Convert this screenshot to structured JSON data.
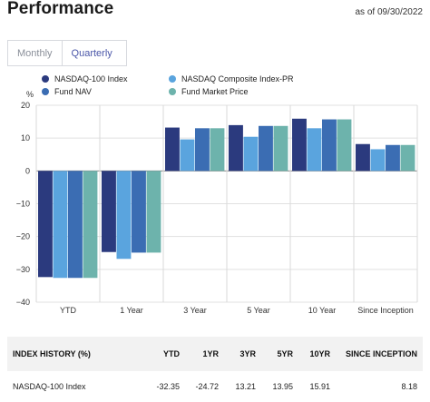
{
  "header": {
    "title": "Performance",
    "as_of": "as of 09/30/2022"
  },
  "tabs": [
    {
      "label": "Monthly",
      "active": false
    },
    {
      "label": "Quarterly",
      "active": true
    }
  ],
  "colors": {
    "nasdaq100": "#2b3a7e",
    "composite": "#5aa4de",
    "nav": "#3b6db3",
    "market": "#6db3ac",
    "accent": "#4a56a8"
  },
  "chart_data": {
    "type": "bar",
    "ylabel": "%",
    "ylim": [
      -40,
      20
    ],
    "yticks": [
      "20",
      "10",
      "0",
      "−10",
      "−20",
      "−30",
      "−40"
    ],
    "categories": [
      "YTD",
      "1 Year",
      "3 Year",
      "5 Year",
      "10 Year",
      "Since Inception"
    ],
    "grid": true,
    "legend_position": "top",
    "series": [
      {
        "name": "NASDAQ-100 Index",
        "values": [
          -32.35,
          -24.72,
          13.21,
          13.95,
          15.91,
          8.18
        ]
      },
      {
        "name": "NASDAQ Composite Index-PR",
        "values": [
          -32.6,
          -26.8,
          9.6,
          10.4,
          13.0,
          6.6
        ]
      },
      {
        "name": "Fund NAV",
        "values": [
          -32.6,
          -24.9,
          13.0,
          13.7,
          15.7,
          7.9
        ]
      },
      {
        "name": "Fund Market Price",
        "values": [
          -32.6,
          -24.9,
          13.0,
          13.7,
          15.7,
          7.9
        ]
      }
    ]
  },
  "table": {
    "headers": [
      "INDEX HISTORY (%)",
      "YTD",
      "1YR",
      "3YR",
      "5YR",
      "10YR",
      "SINCE INCEPTION"
    ],
    "rows": [
      [
        "NASDAQ-100 Index",
        "-32.35",
        "-24.72",
        "13.21",
        "13.95",
        "15.91",
        "8.18"
      ]
    ]
  }
}
